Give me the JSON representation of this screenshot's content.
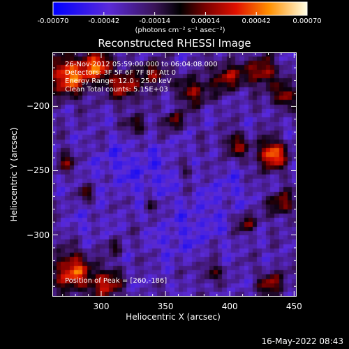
{
  "colorbar": {
    "tick_labels": [
      "-0.00070",
      "-0.00042",
      "-0.00014",
      "0.00014",
      "0.00042",
      "0.00070"
    ],
    "tick_values": [
      -0.0007,
      -0.00042,
      -0.00014,
      0.00014,
      0.00042,
      0.0007
    ],
    "range": [
      -0.0007,
      0.0007
    ],
    "unit": "(photons cm⁻² s⁻¹ asec⁻²)"
  },
  "plot": {
    "title": "Reconstructed RHESSI Image",
    "xlabel": "Heliocentric X (arcsec)",
    "ylabel": "Heliocentric Y (arcsec)",
    "x_range": [
      262,
      452
    ],
    "y_range": [
      -348,
      -158
    ],
    "x_ticks": [
      300,
      350,
      400,
      450
    ],
    "x_tick_labels": [
      "300",
      "350",
      "400",
      "450"
    ],
    "y_ticks": [
      -200,
      -250,
      -300
    ],
    "y_tick_labels": [
      "−200",
      "−250",
      "−300"
    ]
  },
  "info": {
    "line1": "26-Nov-2012 05:59:00.000 to 06:04:08.000",
    "line2": "Detectors: 3F 5F 6F 7F 8F, Att 0",
    "line3": "Energy Range: 12.0 - 25.0 keV",
    "line4": "Clean     Total counts: 5.15E+03",
    "peak": "Position of Peak = [260,-186]"
  },
  "footer": {
    "timestamp": "16-May-2022 08:43"
  }
}
